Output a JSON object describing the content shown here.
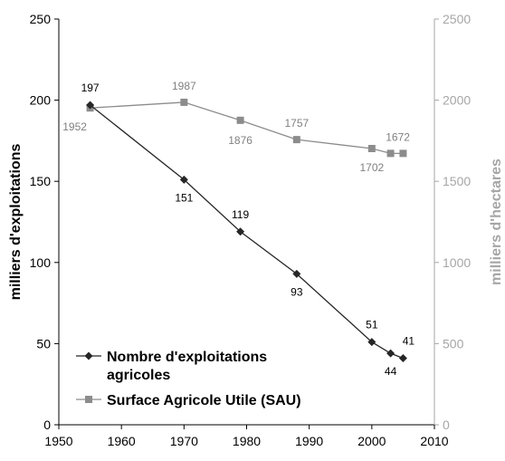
{
  "chart_data": {
    "type": "line",
    "xlabel": "",
    "ylabel": "milliers d'exploitations",
    "ylabel_right": "milliers d'hectares",
    "xlim": [
      1950,
      2010
    ],
    "ylim": [
      0,
      250
    ],
    "ylim_right": [
      0,
      2500
    ],
    "x_ticks": [
      "1950",
      "1960",
      "1970",
      "1980",
      "1990",
      "2000",
      "2010"
    ],
    "y_ticks": [
      "0",
      "50",
      "100",
      "150",
      "200",
      "250"
    ],
    "y_ticks_right": [
      "0",
      "500",
      "1000",
      "1500",
      "2000",
      "2500"
    ],
    "legend_position": "bottom-left",
    "series": [
      {
        "name": "Nombre d'exploitations agricoles",
        "name_lines": [
          "Nombre d'exploitations",
          "agricoles"
        ],
        "axis": "left",
        "color": "#262626",
        "marker": "diamond",
        "x": [
          1955,
          1970,
          1979,
          1988,
          2000,
          2003,
          2005
        ],
        "values": [
          197,
          151,
          119,
          93,
          51,
          44,
          41
        ],
        "labels": [
          "197",
          "151",
          "119",
          "93",
          "51",
          "44",
          "41"
        ]
      },
      {
        "name": "Surface Agricole Utile (SAU)",
        "axis": "right",
        "color": "#8c8c8c",
        "marker": "square",
        "x": [
          1955,
          1970,
          1979,
          1988,
          2000,
          2003,
          2005
        ],
        "values": [
          1952,
          1987,
          1876,
          1757,
          1702,
          1672,
          1672
        ],
        "labels": [
          "1952",
          "1987",
          "1876",
          "1757",
          "1702",
          "1672",
          ""
        ]
      }
    ]
  }
}
